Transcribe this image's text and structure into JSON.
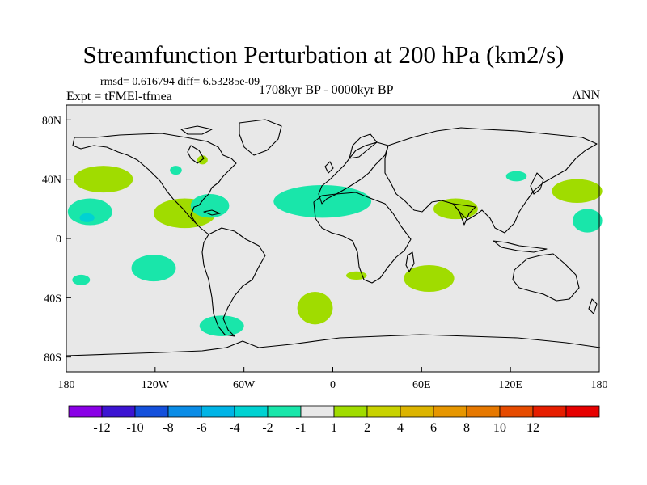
{
  "chart_data": {
    "type": "contour-map",
    "title": "Streamfunction Perturbation at 200 hPa (km2/s)",
    "stats": "rmsd= 0.616794  diff= 6.53285e-09",
    "experiment": "Expt = tFMEl-tfmea",
    "period": "1708kyr BP - 0000kyr BP",
    "season": "ANN",
    "lon_range": [
      -180,
      180
    ],
    "lat_range": [
      -90,
      90
    ],
    "x_ticks": [
      {
        "value": -180,
        "label": "180"
      },
      {
        "value": -120,
        "label": "120W"
      },
      {
        "value": -60,
        "label": "60W"
      },
      {
        "value": 0,
        "label": "0"
      },
      {
        "value": 60,
        "label": "60E"
      },
      {
        "value": 120,
        "label": "120E"
      },
      {
        "value": 180,
        "label": "180"
      }
    ],
    "y_ticks": [
      {
        "value": 80,
        "label": "80N"
      },
      {
        "value": 40,
        "label": "40N"
      },
      {
        "value": 0,
        "label": "0"
      },
      {
        "value": -40,
        "label": "40S"
      },
      {
        "value": -80,
        "label": "80S"
      }
    ],
    "colorbar": {
      "colors": [
        "#8a00e6",
        "#3c14d2",
        "#1450dc",
        "#0a8ce6",
        "#00b4e6",
        "#00d2d2",
        "#19e6aa",
        "#e8e8e8",
        "#a0dc00",
        "#c8d200",
        "#dcb400",
        "#e69600",
        "#e67800",
        "#e64b00",
        "#e61e00",
        "#e60000"
      ],
      "labels": [
        "-12",
        "-10",
        "-8",
        "-6",
        "-4",
        "-2",
        "-1",
        "1",
        "2",
        "4",
        "6",
        "8",
        "10",
        "12"
      ]
    },
    "anomalies": [
      {
        "lon": -155,
        "lat": 40,
        "rx": 20,
        "ry": 9,
        "level": "2",
        "color": "#a0dc00"
      },
      {
        "lon": -164,
        "lat": 18,
        "rx": 15,
        "ry": 9,
        "level": "-2",
        "color": "#19e6aa"
      },
      {
        "lon": -166,
        "lat": 14,
        "rx": 5,
        "ry": 3,
        "level": "-4",
        "color": "#00d2d2"
      },
      {
        "lon": -170,
        "lat": -28,
        "rx": 6,
        "ry": 3.5,
        "level": "-2",
        "color": "#19e6aa"
      },
      {
        "lon": -121,
        "lat": -20,
        "rx": 15,
        "ry": 9,
        "level": "-2",
        "color": "#19e6aa"
      },
      {
        "lon": -106,
        "lat": 46,
        "rx": 4,
        "ry": 3,
        "level": "-2",
        "color": "#19e6aa"
      },
      {
        "lon": -88,
        "lat": 53,
        "rx": 3.5,
        "ry": 3,
        "level": "2",
        "color": "#a0dc00"
      },
      {
        "lon": -100,
        "lat": 17,
        "rx": 21,
        "ry": 10,
        "level": "2",
        "color": "#a0dc00"
      },
      {
        "lon": -83,
        "lat": 22,
        "rx": 13,
        "ry": 8,
        "level": "-2",
        "color": "#19e6aa"
      },
      {
        "lon": -7,
        "lat": 25,
        "rx": 33,
        "ry": 11,
        "level": "-2",
        "color": "#19e6aa"
      },
      {
        "lon": 83,
        "lat": 20,
        "rx": 15,
        "ry": 7,
        "level": "2",
        "color": "#a0dc00"
      },
      {
        "lon": 124,
        "lat": 42,
        "rx": 7,
        "ry": 3.5,
        "level": "-2",
        "color": "#19e6aa"
      },
      {
        "lon": 165,
        "lat": 32,
        "rx": 17,
        "ry": 8,
        "level": "2",
        "color": "#a0dc00"
      },
      {
        "lon": 172,
        "lat": 12,
        "rx": 10,
        "ry": 8,
        "level": "-2",
        "color": "#19e6aa"
      },
      {
        "lon": 16,
        "lat": -25,
        "rx": 7,
        "ry": 2.8,
        "level": "2",
        "color": "#a0dc00"
      },
      {
        "lon": 65,
        "lat": -27,
        "rx": 17,
        "ry": 9,
        "level": "2",
        "color": "#a0dc00"
      },
      {
        "lon": -12,
        "lat": -47,
        "rx": 12,
        "ry": 11,
        "level": "2",
        "color": "#a0dc00"
      },
      {
        "lon": -75,
        "lat": -59,
        "rx": 15,
        "ry": 7,
        "level": "-2",
        "color": "#19e6aa"
      }
    ]
  }
}
